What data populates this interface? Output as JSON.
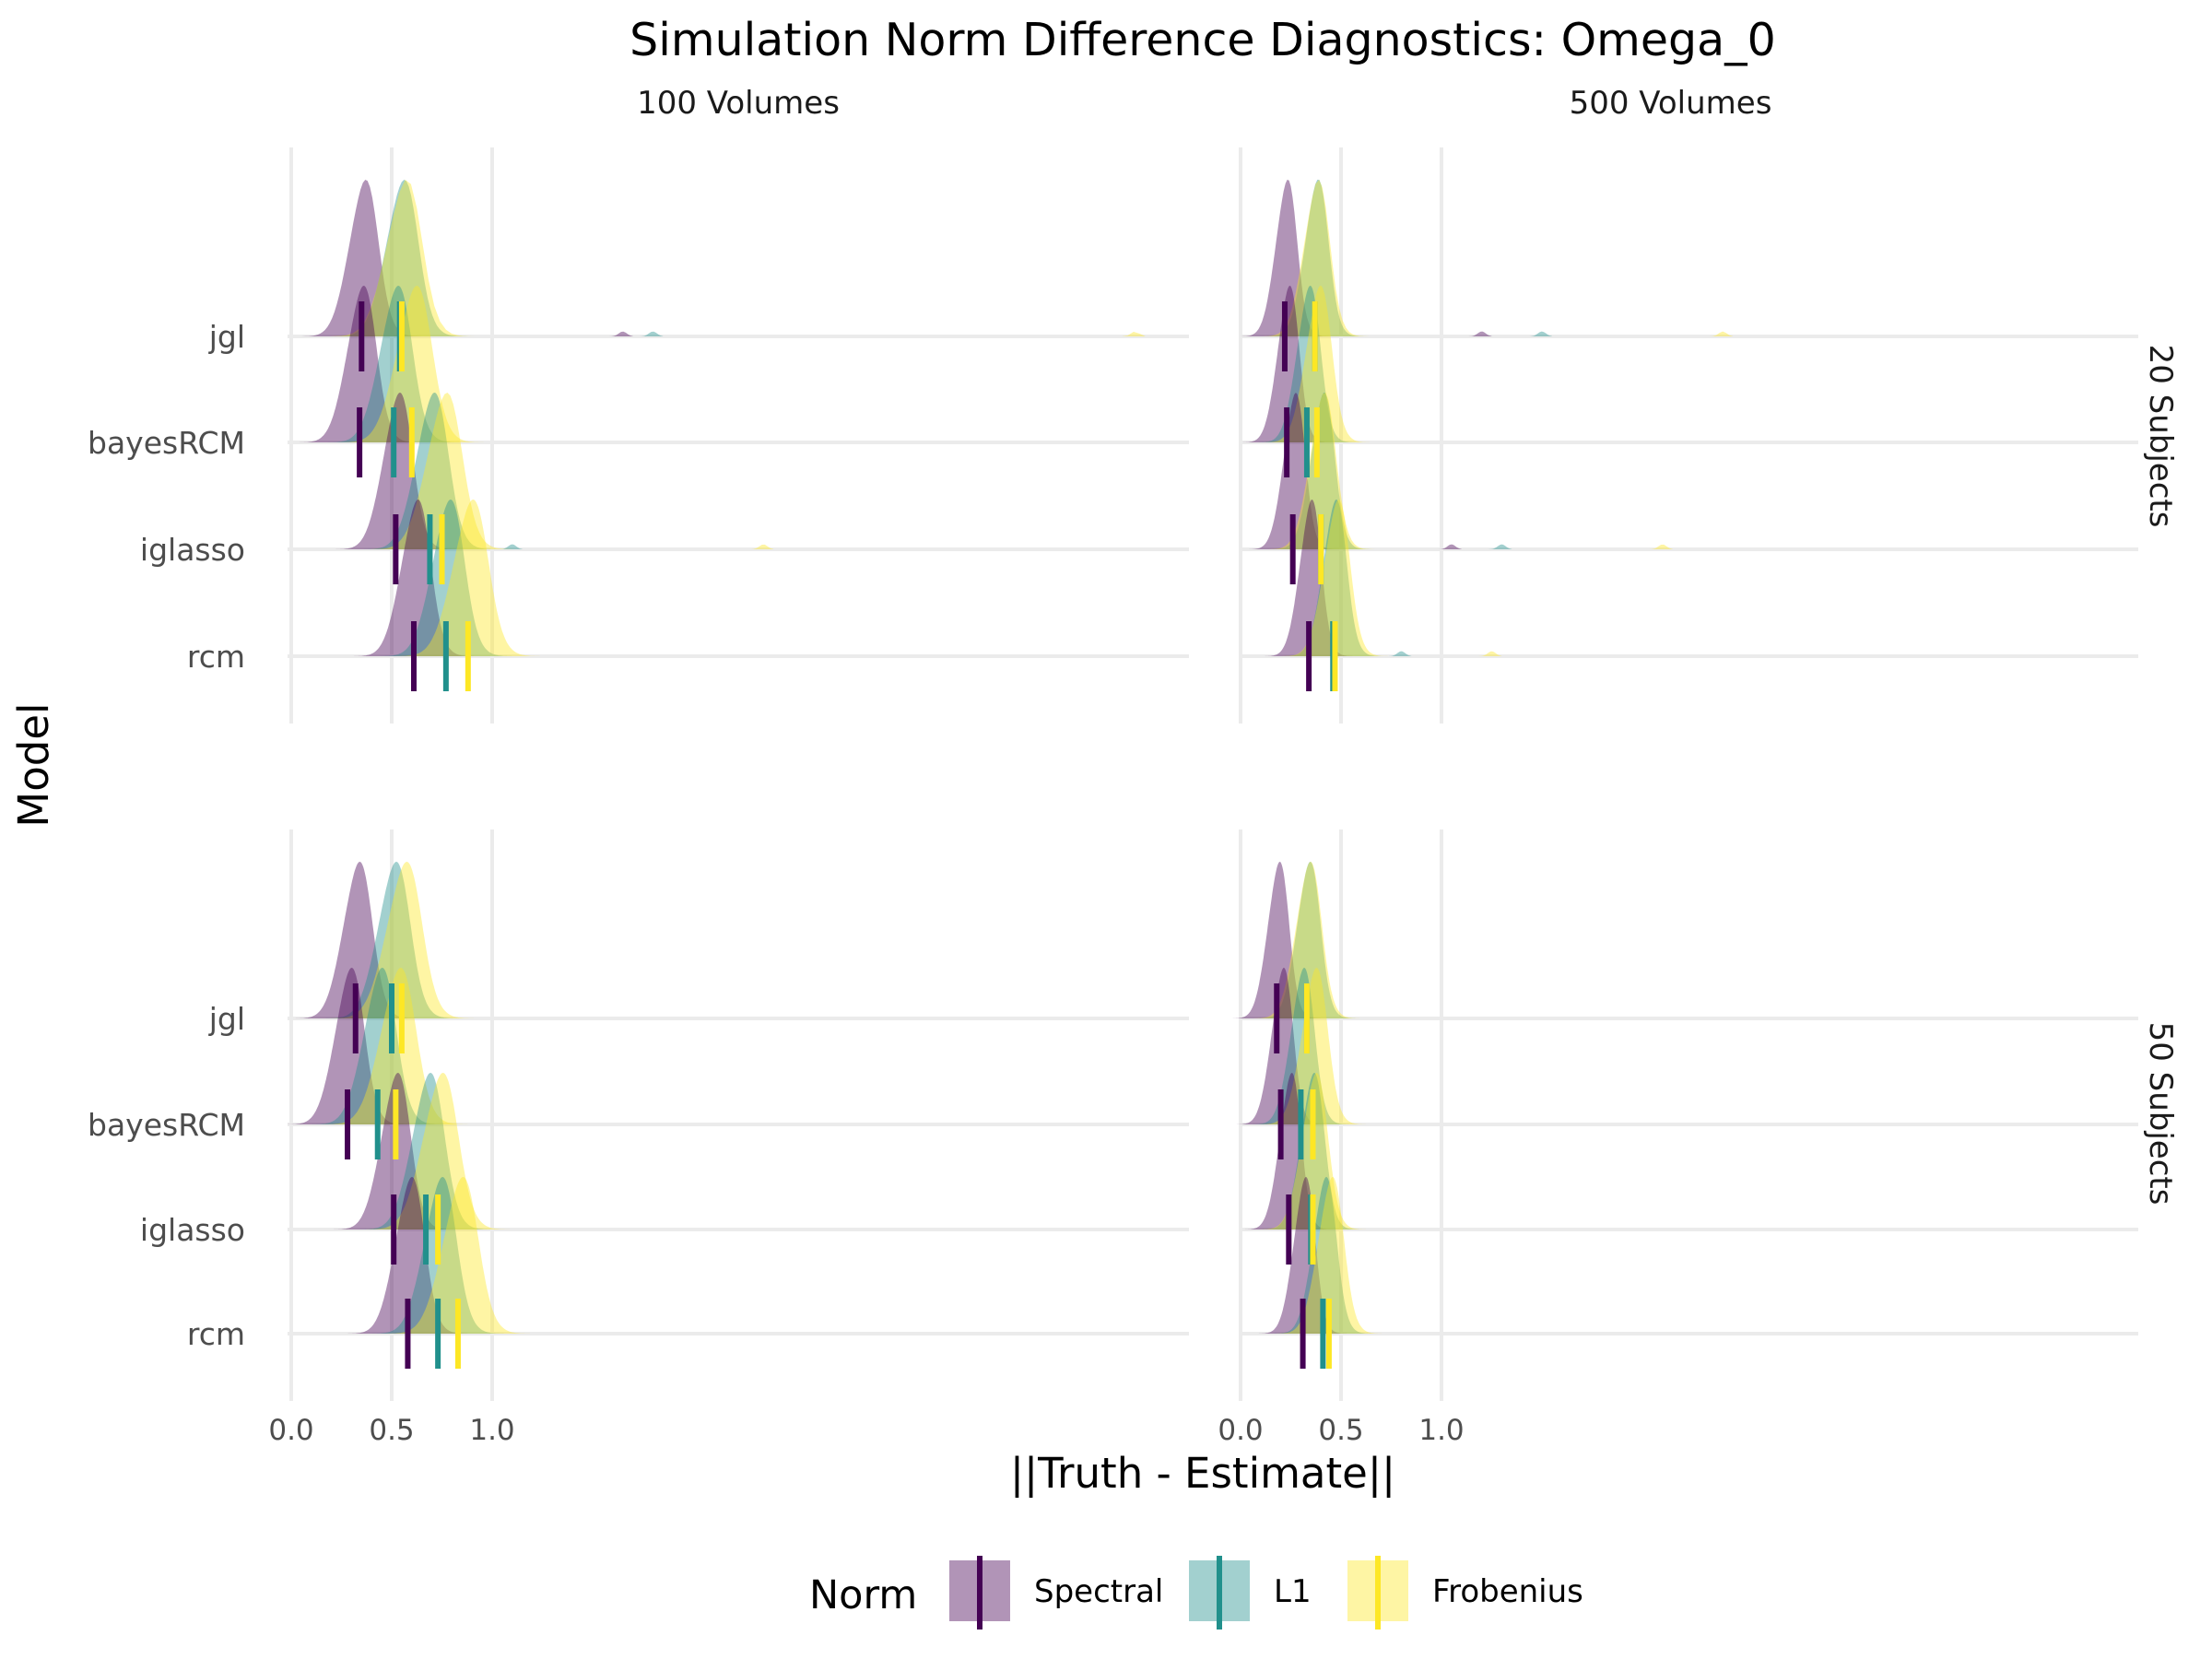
{
  "colors": {
    "Spectral": "#440154",
    "L1": "#21908C",
    "Frobenius": "#FDE725"
  },
  "chart_data": {
    "type": "ridgeline",
    "title": "Simulation Norm Difference Diagnostics: Omega_0",
    "xlabel": "||Truth - Estimate||",
    "ylabel": "Model",
    "x_ticks": [
      "0.0",
      "0.5",
      "1.0"
    ],
    "x_tick_values": [
      0,
      0.5,
      1.0
    ],
    "legend_title": "Norm",
    "legend_position": "bottom",
    "grid": true,
    "norms": [
      "Spectral",
      "L1",
      "Frobenius"
    ],
    "models": [
      "jgl",
      "bayesRCM",
      "iglasso",
      "rcm"
    ],
    "columns": [
      "100 Volumes",
      "500 Volumes"
    ],
    "rows": [
      "20 Subjects",
      "50 Subjects"
    ],
    "panels": [
      {
        "column": "100 Volumes",
        "row": "20 Subjects",
        "medians": {
          "jgl": {
            "Spectral": 0.35,
            "L1": 0.54,
            "Frobenius": 0.55
          },
          "bayesRCM": {
            "Spectral": 0.34,
            "L1": 0.51,
            "Frobenius": 0.6
          },
          "iglasso": {
            "Spectral": 0.52,
            "L1": 0.69,
            "Frobenius": 0.75
          },
          "rcm": {
            "Spectral": 0.61,
            "L1": 0.77,
            "Frobenius": 0.88
          }
        },
        "outliers": {
          "jgl": {
            "Spectral": 1.65,
            "L1": 1.8,
            "Frobenius": 4.2
          },
          "iglasso": {
            "L1": 1.1,
            "Frobenius": 2.35
          }
        }
      },
      {
        "column": "500 Volumes",
        "row": "20 Subjects",
        "medians": {
          "jgl": {
            "Spectral": 0.22,
            "L1": 0.37,
            "Frobenius": 0.37
          },
          "bayesRCM": {
            "Spectral": 0.23,
            "L1": 0.33,
            "Frobenius": 0.38
          },
          "iglasso": {
            "Spectral": 0.26,
            "L1": 0.4,
            "Frobenius": 0.4
          },
          "rcm": {
            "Spectral": 0.34,
            "L1": 0.46,
            "Frobenius": 0.47
          }
        },
        "outliers": {
          "jgl": {
            "Spectral": 1.2,
            "L1": 1.5,
            "Frobenius": 2.4
          },
          "iglasso": {
            "Spectral": 1.05,
            "L1": 1.3,
            "Frobenius": 2.1
          },
          "rcm": {
            "L1": 0.8,
            "Frobenius": 1.25
          }
        }
      },
      {
        "column": "100 Volumes",
        "row": "50 Subjects",
        "medians": {
          "jgl": {
            "Spectral": 0.32,
            "L1": 0.5,
            "Frobenius": 0.55
          },
          "bayesRCM": {
            "Spectral": 0.28,
            "L1": 0.43,
            "Frobenius": 0.52
          },
          "iglasso": {
            "Spectral": 0.51,
            "L1": 0.67,
            "Frobenius": 0.73
          },
          "rcm": {
            "Spectral": 0.58,
            "L1": 0.73,
            "Frobenius": 0.83
          }
        },
        "outliers": {}
      },
      {
        "column": "500 Volumes",
        "row": "50 Subjects",
        "medians": {
          "jgl": {
            "Spectral": 0.18,
            "L1": 0.33,
            "Frobenius": 0.33
          },
          "bayesRCM": {
            "Spectral": 0.2,
            "L1": 0.3,
            "Frobenius": 0.36
          },
          "iglasso": {
            "Spectral": 0.24,
            "L1": 0.35,
            "Frobenius": 0.36
          },
          "rcm": {
            "Spectral": 0.31,
            "L1": 0.41,
            "Frobenius": 0.44
          }
        },
        "outliers": {}
      }
    ]
  }
}
